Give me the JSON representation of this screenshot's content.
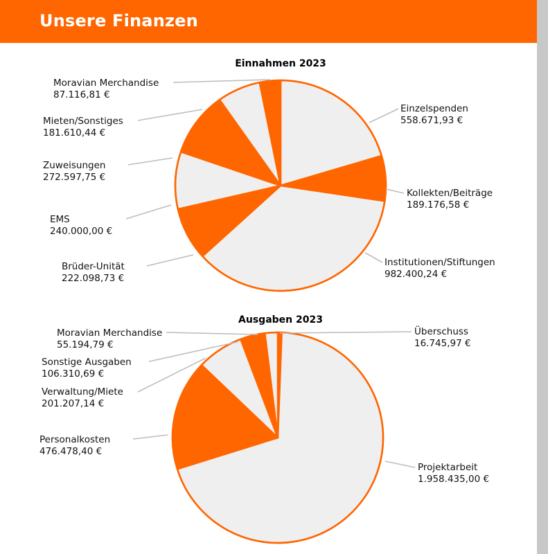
{
  "header": {
    "title": "Unsere Finanzen"
  },
  "colors": {
    "accent": "#ff6600",
    "light": "#efefef",
    "leader": "#bdbdbd"
  },
  "chart_data": [
    {
      "type": "pie",
      "title": "Einnahmen 2023",
      "slices": [
        {
          "label": "Einzelspenden",
          "value_text": "558.671,93 €",
          "value": 558671.93,
          "color": "#efefef"
        },
        {
          "label": "Kollekten/Beiträge",
          "value_text": "189.176,58 €",
          "value": 189176.58,
          "color": "#ff6600"
        },
        {
          "label": "Institutionen/Stiftungen",
          "value_text": "982.400,24 €",
          "value": 982400.24,
          "color": "#efefef"
        },
        {
          "label": "Brüder-Unität",
          "value_text": "222.098,73 €",
          "value": 222098.73,
          "color": "#ff6600"
        },
        {
          "label": "EMS",
          "value_text": "240.000,00 €",
          "value": 240000.0,
          "color": "#efefef"
        },
        {
          "label": "Zuweisungen",
          "value_text": "272.597,75 €",
          "value": 272597.75,
          "color": "#ff6600"
        },
        {
          "label": "Mieten/Sonstiges",
          "value_text": "181.610,44 €",
          "value": 181610.44,
          "color": "#efefef"
        },
        {
          "label": "Moravian Merchandise",
          "value_text": "87.116,81 €",
          "value": 87116.81,
          "color": "#ff6600"
        }
      ]
    },
    {
      "type": "pie",
      "title": "Ausgaben 2023",
      "slices": [
        {
          "label": "Überschuss",
          "value_text": "16.745,97 €",
          "value": 16745.97,
          "color": "#ff6600"
        },
        {
          "label": "Projektarbeit",
          "value_text": "1.958.435,00 €",
          "value": 1958435.0,
          "color": "#efefef"
        },
        {
          "label": "Personalkosten",
          "value_text": "476.478,40 €",
          "value": 476478.4,
          "color": "#ff6600"
        },
        {
          "label": "Verwaltung/Miete",
          "value_text": "201.207,14 €",
          "value": 201207.14,
          "color": "#efefef"
        },
        {
          "label": "Sonstige Ausgaben",
          "value_text": "106.310,69 €",
          "value": 106310.69,
          "color": "#ff6600"
        },
        {
          "label": "Moravian Merchandise",
          "value_text": "55.194,79 €",
          "value": 55194.79,
          "color": "#efefef"
        }
      ]
    }
  ]
}
